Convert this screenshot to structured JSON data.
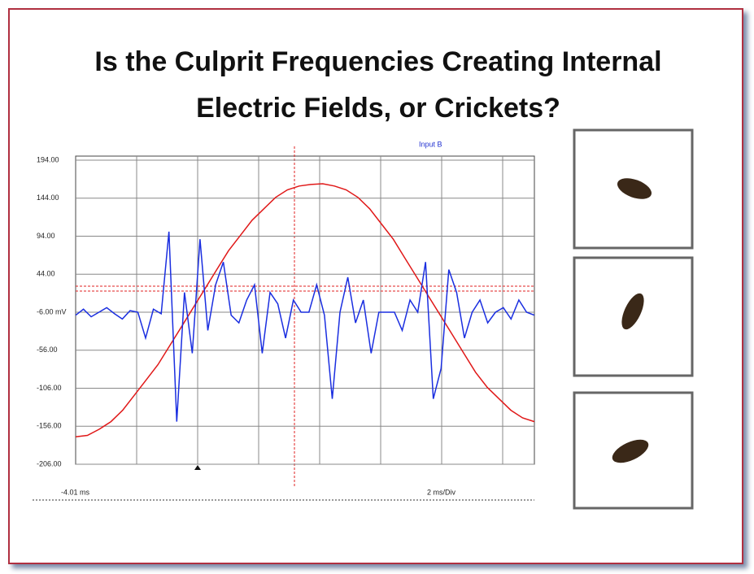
{
  "chart_data": {
    "type": "line",
    "title": "Is the Culprit Frequencies Creating Internal Electric Fields, or Crickets?",
    "annotation": "Input B",
    "x_start_label": "-4.01 ms",
    "x_scale_label": "2 ms/Div",
    "ylim": [
      -206,
      194
    ],
    "yticks": [
      {
        "value": 194,
        "label": "194.00"
      },
      {
        "value": 144,
        "label": "144.00"
      },
      {
        "value": 94,
        "label": "94.00"
      },
      {
        "value": 44,
        "label": "44.00"
      },
      {
        "value": -6,
        "label": "-6.00 mV"
      },
      {
        "value": -56,
        "label": "-56.00"
      },
      {
        "value": -106,
        "label": "-106.00"
      },
      {
        "value": -156,
        "label": "-156.00"
      },
      {
        "value": -206,
        "label": "-206.00"
      }
    ],
    "grid": true,
    "series": [
      {
        "color": "#e01818",
        "values": [
          -170,
          -168,
          -160,
          -150,
          -135,
          -115,
          -95,
          -75,
          -50,
          -25,
          0,
          25,
          50,
          75,
          95,
          115,
          130,
          145,
          155,
          160,
          162,
          163,
          160,
          155,
          145,
          130,
          110,
          90,
          65,
          40,
          15,
          -10,
          -35,
          -60,
          -85,
          -105,
          -120,
          -135,
          -145,
          -150
        ]
      },
      {
        "color": "#1a2ee0",
        "values": [
          -10,
          -2,
          -12,
          -6,
          0,
          -8,
          -15,
          -4,
          -6,
          -40,
          -2,
          -8,
          100,
          -150,
          20,
          -60,
          90,
          -30,
          30,
          60,
          -10,
          -20,
          10,
          30,
          -60,
          20,
          5,
          -40,
          10,
          -6,
          -6,
          30,
          -10,
          -120,
          -6,
          40,
          -20,
          10,
          -60,
          -6,
          -6,
          -6,
          -30,
          10,
          -6,
          60,
          -120,
          -80,
          50,
          20,
          -40,
          -6,
          10,
          -20,
          -6,
          0,
          -15,
          10,
          -6,
          -10
        ]
      }
    ]
  }
}
